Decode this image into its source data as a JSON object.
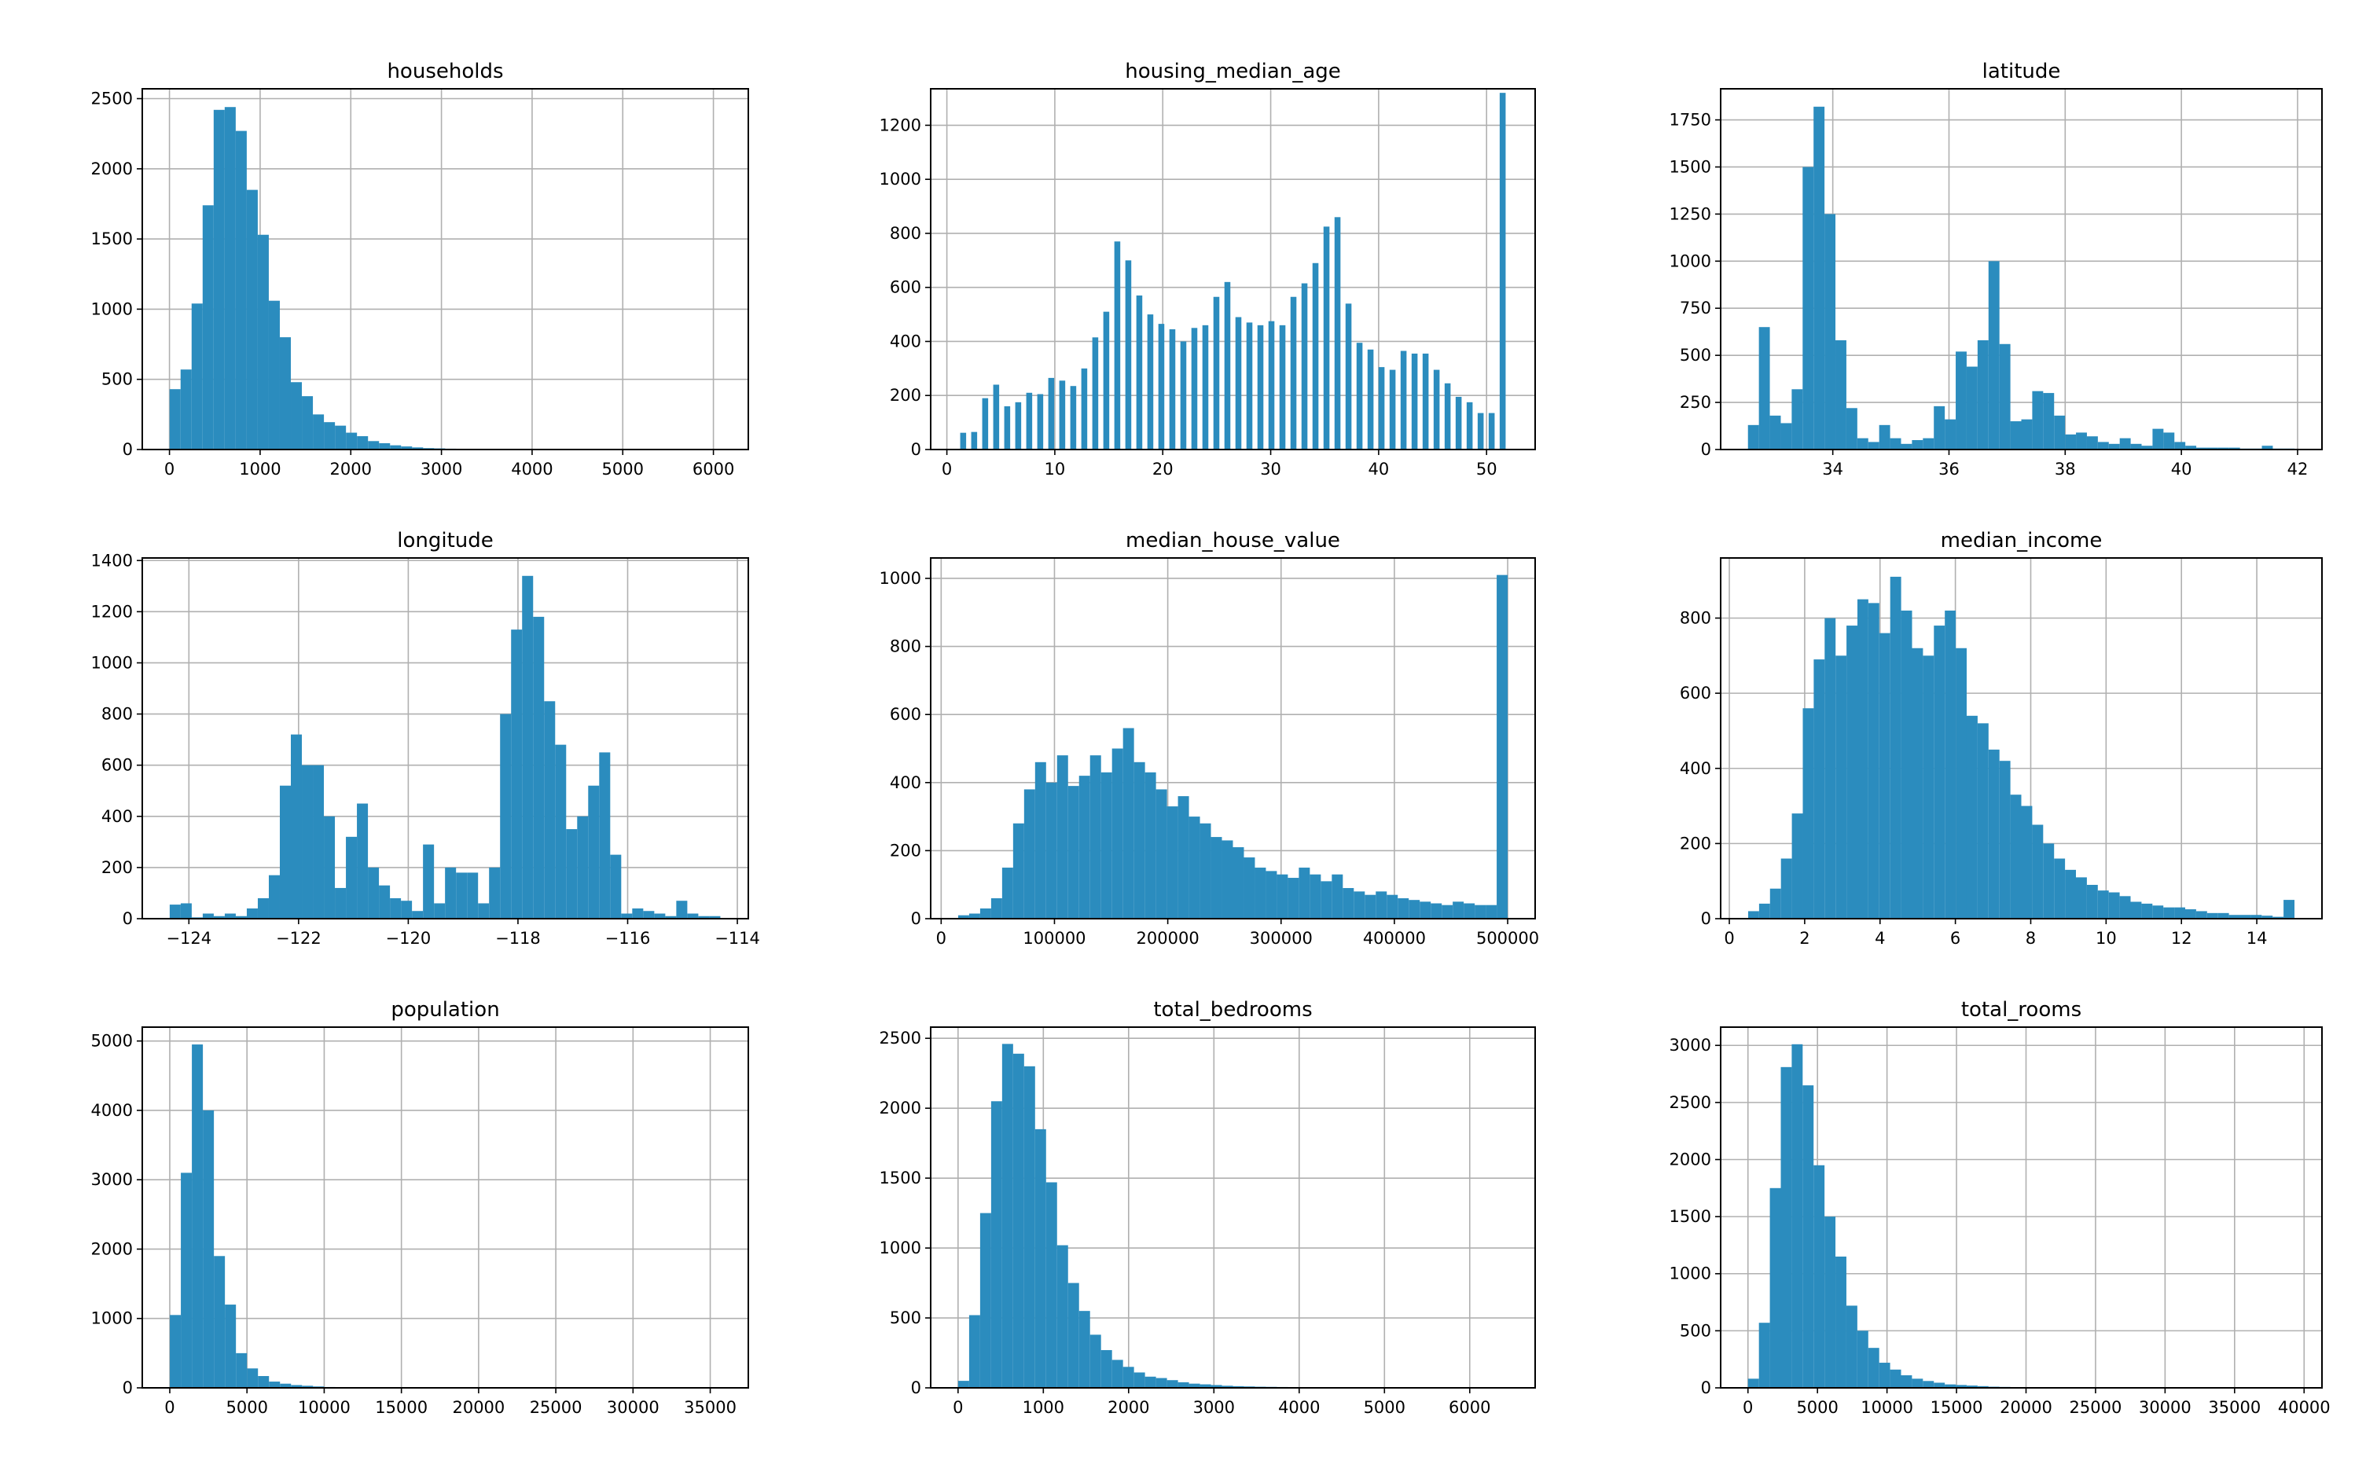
{
  "chart_data": [
    {
      "type": "bar",
      "title": "households",
      "range": [
        1,
        6082
      ],
      "xlim": [
        -300,
        6385
      ],
      "ylim": [
        0,
        2570
      ],
      "xticks": [
        0,
        1000,
        2000,
        3000,
        4000,
        5000,
        6000
      ],
      "yticks": [
        0,
        500,
        1000,
        1500,
        2000,
        2500
      ],
      "values": [
        430,
        570,
        1040,
        1740,
        2420,
        2440,
        2270,
        1850,
        1530,
        1060,
        800,
        480,
        380,
        250,
        195,
        170,
        120,
        95,
        60,
        45,
        30,
        22,
        15,
        10,
        8,
        6,
        5,
        4,
        3,
        3,
        2,
        2,
        2,
        1,
        1,
        1,
        1,
        1,
        0,
        0,
        0,
        0,
        0,
        0,
        0,
        0,
        0,
        0,
        0,
        1
      ]
    },
    {
      "type": "bar",
      "title": "housing_median_age",
      "discrete": true,
      "range": [
        1,
        52
      ],
      "xlim": [
        -1.5,
        54.5
      ],
      "ylim": [
        0,
        1335
      ],
      "xticks": [
        0,
        10,
        20,
        30,
        40,
        50
      ],
      "yticks": [
        0,
        200,
        400,
        600,
        800,
        1000,
        1200
      ],
      "values": [
        62,
        65,
        190,
        240,
        160,
        175,
        210,
        205,
        265,
        255,
        235,
        300,
        415,
        510,
        770,
        700,
        570,
        500,
        465,
        445,
        400,
        450,
        460,
        565,
        620,
        490,
        470,
        460,
        475,
        460,
        565,
        615,
        690,
        825,
        860,
        540,
        395,
        370,
        305,
        295,
        365,
        355,
        355,
        295,
        245,
        195,
        175,
        135,
        135,
        1320
      ]
    },
    {
      "type": "bar",
      "title": "latitude",
      "range": [
        32.54,
        41.95
      ],
      "xlim": [
        32.07,
        42.42
      ],
      "ylim": [
        0,
        1915
      ],
      "xticks": [
        34,
        36,
        38,
        40,
        42
      ],
      "yticks": [
        0,
        250,
        500,
        750,
        1000,
        1250,
        1500,
        1750
      ],
      "values": [
        130,
        650,
        180,
        140,
        320,
        1500,
        1820,
        1250,
        580,
        220,
        60,
        40,
        130,
        60,
        30,
        50,
        60,
        230,
        160,
        520,
        440,
        580,
        1000,
        560,
        150,
        160,
        310,
        300,
        180,
        80,
        90,
        70,
        40,
        30,
        60,
        30,
        20,
        110,
        90,
        40,
        20,
        10,
        10,
        10,
        10,
        5,
        5,
        20,
        5,
        5
      ]
    },
    {
      "type": "bar",
      "title": "longitude",
      "range": [
        -124.35,
        -114.31
      ],
      "xlim": [
        -124.85,
        -113.8
      ],
      "ylim": [
        0,
        1410
      ],
      "xticks": [
        -124,
        -122,
        -120,
        -118,
        -116,
        -114
      ],
      "yticks": [
        0,
        200,
        400,
        600,
        800,
        1000,
        1200,
        1400
      ],
      "values": [
        55,
        60,
        5,
        20,
        10,
        20,
        10,
        40,
        80,
        170,
        520,
        720,
        600,
        600,
        400,
        120,
        320,
        450,
        200,
        130,
        80,
        70,
        30,
        290,
        60,
        200,
        180,
        180,
        60,
        200,
        800,
        1130,
        1340,
        1180,
        850,
        680,
        350,
        400,
        520,
        650,
        250,
        20,
        40,
        30,
        20,
        10,
        70,
        20,
        10,
        10
      ]
    },
    {
      "type": "bar",
      "title": "median_house_value",
      "range": [
        14999,
        500001
      ],
      "xlim": [
        -9250,
        524250
      ],
      "ylim": [
        0,
        1060
      ],
      "xticks": [
        0,
        100000,
        200000,
        300000,
        400000,
        500000
      ],
      "yticks": [
        0,
        200,
        400,
        600,
        800,
        1000
      ],
      "values": [
        10,
        15,
        30,
        60,
        150,
        280,
        380,
        460,
        400,
        480,
        390,
        420,
        480,
        430,
        500,
        560,
        460,
        430,
        380,
        330,
        360,
        300,
        280,
        240,
        230,
        210,
        180,
        150,
        140,
        130,
        120,
        150,
        130,
        110,
        130,
        90,
        80,
        70,
        80,
        70,
        60,
        55,
        50,
        45,
        40,
        50,
        45,
        40,
        40,
        1010
      ]
    },
    {
      "type": "bar",
      "title": "median_income",
      "range": [
        0.5,
        15.0
      ],
      "xlim": [
        -0.23,
        15.73
      ],
      "ylim": [
        0,
        960
      ],
      "xticks": [
        0,
        2,
        4,
        6,
        8,
        10,
        12,
        14
      ],
      "yticks": [
        0,
        200,
        400,
        600,
        800
      ],
      "values": [
        20,
        40,
        80,
        160,
        280,
        560,
        690,
        800,
        700,
        780,
        850,
        840,
        760,
        910,
        820,
        720,
        700,
        780,
        820,
        720,
        540,
        520,
        450,
        420,
        330,
        300,
        250,
        200,
        160,
        130,
        110,
        90,
        75,
        70,
        60,
        45,
        40,
        35,
        30,
        30,
        25,
        20,
        15,
        15,
        10,
        10,
        10,
        8,
        5,
        50
      ]
    },
    {
      "type": "bar",
      "title": "population",
      "range": [
        3,
        35682
      ],
      "xlim": [
        -1781,
        37466
      ],
      "ylim": [
        0,
        5200
      ],
      "xticks": [
        0,
        5000,
        10000,
        15000,
        20000,
        25000,
        30000,
        35000
      ],
      "yticks": [
        0,
        1000,
        2000,
        3000,
        4000,
        5000
      ],
      "values": [
        1050,
        3100,
        4950,
        4000,
        1900,
        1200,
        500,
        280,
        170,
        90,
        60,
        40,
        30,
        20,
        12,
        10,
        8,
        5,
        4,
        3,
        2,
        2,
        1,
        1,
        1,
        1,
        0,
        0,
        0,
        0,
        0,
        0,
        0,
        0,
        0,
        0,
        0,
        0,
        0,
        0,
        0,
        0,
        0,
        0,
        0,
        0,
        0,
        0,
        0,
        1
      ]
    },
    {
      "type": "bar",
      "title": "total_bedrooms",
      "range": [
        1,
        6445
      ],
      "xlim": [
        -321,
        6767
      ],
      "ylim": [
        0,
        2580
      ],
      "xticks": [
        0,
        1000,
        2000,
        3000,
        4000,
        5000,
        6000
      ],
      "yticks": [
        0,
        500,
        1000,
        1500,
        2000,
        2500
      ],
      "values": [
        50,
        520,
        1250,
        2050,
        2460,
        2390,
        2300,
        1850,
        1470,
        1020,
        750,
        550,
        380,
        270,
        200,
        150,
        110,
        80,
        70,
        55,
        40,
        30,
        25,
        20,
        15,
        12,
        10,
        8,
        7,
        6,
        5,
        4,
        3,
        3,
        2,
        2,
        2,
        1,
        1,
        1,
        1,
        0,
        0,
        0,
        1,
        0,
        0,
        0,
        0,
        1
      ]
    },
    {
      "type": "bar",
      "title": "total_rooms",
      "range": [
        2,
        39320
      ],
      "xlim": [
        -1964,
        41286
      ],
      "ylim": [
        0,
        3160
      ],
      "xticks": [
        0,
        5000,
        10000,
        15000,
        20000,
        25000,
        30000,
        35000,
        40000
      ],
      "yticks": [
        0,
        500,
        1000,
        1500,
        2000,
        2500,
        3000
      ],
      "values": [
        80,
        570,
        1750,
        2810,
        3010,
        2650,
        1950,
        1500,
        1150,
        720,
        500,
        350,
        220,
        160,
        110,
        80,
        60,
        45,
        30,
        25,
        20,
        15,
        10,
        8,
        6,
        5,
        4,
        3,
        2,
        2,
        1,
        1,
        1,
        1,
        0,
        0,
        0,
        0,
        0,
        0,
        0,
        0,
        0,
        0,
        0,
        0,
        0,
        0,
        0,
        1
      ]
    }
  ],
  "colors": {
    "bar": "#2b8cbe",
    "grid": "#b0b0b0",
    "axes": "#000000"
  }
}
